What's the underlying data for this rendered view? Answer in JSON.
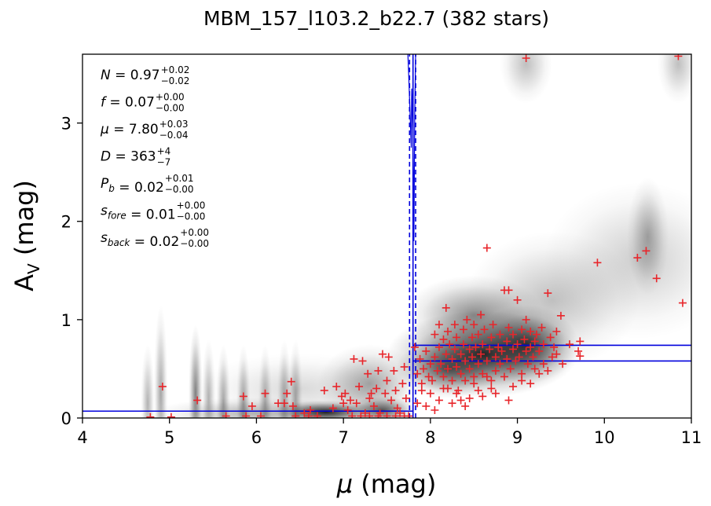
{
  "chart_data": {
    "type": "scatter",
    "title": "MBM_157_l103.2_b22.7 (382 stars)",
    "xlabel": {
      "symbol": "μ",
      "unit": " (mag)"
    },
    "ylabel": {
      "base": "A",
      "sub": "V",
      "unit": " (mag)"
    },
    "xlim": [
      4,
      11
    ],
    "ylim": [
      0,
      3.7
    ],
    "xticks": [
      "4",
      "5",
      "6",
      "7",
      "8",
      "9",
      "10",
      "11"
    ],
    "yticks": [
      "0",
      "1",
      "2",
      "3"
    ],
    "grid": false,
    "legend": "none",
    "colors": {
      "points": "#e8262b",
      "model": "#0000dd",
      "density": "#000000"
    },
    "parameters": [
      {
        "sym": "N",
        "sub": "",
        "val": "0.97",
        "up": "+0.02",
        "dn": "−0.02"
      },
      {
        "sym": "f",
        "sub": "",
        "val": "0.07",
        "up": "+0.00",
        "dn": "−0.00"
      },
      {
        "sym": "μ",
        "sub": "",
        "val": "7.80",
        "up": "+0.03",
        "dn": "−0.04"
      },
      {
        "sym": "D",
        "sub": "",
        "val": "363",
        "up": "+4",
        "dn": "−7"
      },
      {
        "sym": "P",
        "sub": "b",
        "val": "0.02",
        "up": "+0.01",
        "dn": "−0.00"
      },
      {
        "sym": "s",
        "sub": "fore",
        "val": "0.01",
        "up": "+0.00",
        "dn": "−0.00"
      },
      {
        "sym": "s",
        "sub": "back",
        "val": "0.02",
        "up": "+0.00",
        "dn": "−0.00"
      }
    ],
    "model": {
      "distance_modulus": 7.8,
      "mu_err_low": 7.76,
      "mu_err_high": 7.83,
      "foreground_av": 0.07,
      "background_av_low": 0.58,
      "background_av_high": 0.74
    },
    "density": [
      {
        "x": 8.6,
        "y": 0.65,
        "sx": 0.55,
        "sy": 0.22,
        "a": 0.85
      },
      {
        "x": 9.1,
        "y": 0.75,
        "sx": 0.3,
        "sy": 0.2,
        "a": 0.7
      },
      {
        "x": 8.2,
        "y": 0.5,
        "sx": 0.3,
        "sy": 0.15,
        "a": 0.55
      },
      {
        "x": 8.5,
        "y": 1.05,
        "sx": 0.4,
        "sy": 0.2,
        "a": 0.45
      },
      {
        "x": 9.4,
        "y": 1.2,
        "sx": 0.5,
        "sy": 0.35,
        "a": 0.25
      },
      {
        "x": 10.4,
        "y": 1.6,
        "sx": 0.55,
        "sy": 0.4,
        "a": 0.2
      },
      {
        "x": 10.5,
        "y": 1.85,
        "sx": 0.12,
        "sy": 0.3,
        "a": 0.3
      },
      {
        "x": 9.1,
        "y": 3.6,
        "sx": 0.15,
        "sy": 0.2,
        "a": 0.25
      },
      {
        "x": 10.85,
        "y": 3.6,
        "sx": 0.12,
        "sy": 0.2,
        "a": 0.25
      },
      {
        "x": 6.8,
        "y": 0.06,
        "sx": 0.3,
        "sy": 0.06,
        "a": 0.85
      },
      {
        "x": 7.45,
        "y": 0.08,
        "sx": 0.2,
        "sy": 0.07,
        "a": 0.65
      },
      {
        "x": 6.0,
        "y": 0.05,
        "sx": 0.6,
        "sy": 0.08,
        "a": 0.3
      },
      {
        "x": 7.3,
        "y": 0.35,
        "sx": 0.3,
        "sy": 0.2,
        "a": 0.35
      },
      {
        "x": 6.5,
        "y": 0.3,
        "sx": 0.6,
        "sy": 0.18,
        "a": 0.15
      },
      {
        "x": 5.3,
        "y": 0.25,
        "sx": 0.04,
        "sy": 0.35,
        "a": 0.5
      },
      {
        "x": 4.9,
        "y": 0.25,
        "sx": 0.04,
        "sy": 0.45,
        "a": 0.35
      },
      {
        "x": 4.75,
        "y": 0.15,
        "sx": 0.04,
        "sy": 0.3,
        "a": 0.3
      },
      {
        "x": 5.45,
        "y": 0.2,
        "sx": 0.04,
        "sy": 0.3,
        "a": 0.3
      },
      {
        "x": 5.62,
        "y": 0.15,
        "sx": 0.04,
        "sy": 0.3,
        "a": 0.35
      },
      {
        "x": 5.85,
        "y": 0.15,
        "sx": 0.04,
        "sy": 0.3,
        "a": 0.35
      },
      {
        "x": 6.1,
        "y": 0.15,
        "sx": 0.04,
        "sy": 0.3,
        "a": 0.3
      },
      {
        "x": 6.32,
        "y": 0.2,
        "sx": 0.04,
        "sy": 0.3,
        "a": 0.3
      },
      {
        "x": 6.45,
        "y": 0.2,
        "sx": 0.04,
        "sy": 0.3,
        "a": 0.3
      }
    ],
    "points": [
      [
        4.92,
        0.32
      ],
      [
        5.32,
        0.18
      ],
      [
        5.02,
        0.01
      ],
      [
        4.78,
        0.01
      ],
      [
        5.65,
        0.02
      ],
      [
        5.85,
        0.22
      ],
      [
        5.88,
        0.02
      ],
      [
        5.95,
        0.12
      ],
      [
        6.1,
        0.25
      ],
      [
        6.05,
        0.02
      ],
      [
        6.25,
        0.15
      ],
      [
        6.32,
        0.15
      ],
      [
        6.35,
        0.25
      ],
      [
        6.4,
        0.37
      ],
      [
        6.42,
        0.12
      ],
      [
        6.45,
        0.02
      ],
      [
        6.55,
        0.05
      ],
      [
        6.6,
        0.02
      ],
      [
        6.62,
        0.08
      ],
      [
        6.7,
        0.02
      ],
      [
        6.78,
        0.28
      ],
      [
        6.88,
        0.1
      ],
      [
        6.92,
        0.32
      ],
      [
        6.98,
        0.22
      ],
      [
        7.0,
        0.15
      ],
      [
        7.02,
        0.25
      ],
      [
        7.05,
        0.08
      ],
      [
        7.08,
        0.18
      ],
      [
        7.1,
        0.02
      ],
      [
        7.12,
        0.6
      ],
      [
        7.15,
        0.15
      ],
      [
        7.18,
        0.32
      ],
      [
        7.22,
        0.58
      ],
      [
        7.25,
        0.05
      ],
      [
        7.28,
        0.45
      ],
      [
        7.3,
        0.2
      ],
      [
        7.32,
        0.25
      ],
      [
        7.35,
        0.12
      ],
      [
        7.38,
        0.3
      ],
      [
        7.4,
        0.48
      ],
      [
        7.42,
        0.05
      ],
      [
        7.45,
        0.65
      ],
      [
        7.48,
        0.25
      ],
      [
        7.5,
        0.38
      ],
      [
        7.52,
        0.62
      ],
      [
        7.55,
        0.18
      ],
      [
        7.58,
        0.48
      ],
      [
        7.6,
        0.28
      ],
      [
        7.62,
        0.1
      ],
      [
        7.65,
        0.05
      ],
      [
        7.68,
        0.35
      ],
      [
        7.7,
        0.52
      ],
      [
        7.72,
        0.2
      ],
      [
        7.75,
        0.02
      ],
      [
        7.4,
        0.02
      ],
      [
        7.3,
        0.02
      ],
      [
        7.6,
        0.02
      ],
      [
        7.7,
        0.02
      ],
      [
        7.2,
        0.02
      ],
      [
        7.5,
        0.02
      ],
      [
        7.82,
        0.72
      ],
      [
        7.85,
        0.45
      ],
      [
        7.88,
        0.6
      ],
      [
        7.9,
        0.35
      ],
      [
        7.92,
        0.5
      ],
      [
        7.95,
        0.68
      ],
      [
        7.98,
        0.42
      ],
      [
        8.0,
        0.55
      ],
      [
        8.02,
        0.38
      ],
      [
        8.05,
        0.85
      ],
      [
        8.05,
        0.62
      ],
      [
        8.08,
        0.48
      ],
      [
        8.1,
        0.95
      ],
      [
        8.1,
        0.72
      ],
      [
        8.12,
        0.55
      ],
      [
        8.15,
        0.42
      ],
      [
        8.15,
        0.8
      ],
      [
        8.18,
        1.12
      ],
      [
        8.18,
        0.65
      ],
      [
        8.2,
        0.5
      ],
      [
        8.2,
        0.88
      ],
      [
        8.22,
        0.75
      ],
      [
        8.25,
        0.38
      ],
      [
        8.25,
        0.6
      ],
      [
        8.28,
        0.95
      ],
      [
        8.28,
        0.7
      ],
      [
        8.3,
        0.52
      ],
      [
        8.3,
        0.82
      ],
      [
        8.32,
        0.28
      ],
      [
        8.35,
        0.65
      ],
      [
        8.35,
        0.45
      ],
      [
        8.38,
        0.9
      ],
      [
        8.38,
        0.75
      ],
      [
        8.4,
        0.58
      ],
      [
        8.4,
        0.38
      ],
      [
        8.42,
        1.0
      ],
      [
        8.45,
        0.7
      ],
      [
        8.45,
        0.5
      ],
      [
        8.48,
        0.82
      ],
      [
        8.48,
        0.62
      ],
      [
        8.5,
        0.42
      ],
      [
        8.5,
        0.95
      ],
      [
        8.52,
        0.72
      ],
      [
        8.55,
        0.55
      ],
      [
        8.55,
        0.85
      ],
      [
        8.58,
        1.05
      ],
      [
        8.58,
        0.65
      ],
      [
        8.6,
        0.45
      ],
      [
        8.6,
        0.75
      ],
      [
        8.62,
        0.9
      ],
      [
        8.65,
        1.73
      ],
      [
        8.65,
        0.58
      ],
      [
        8.68,
        0.7
      ],
      [
        8.7,
        0.38
      ],
      [
        8.7,
        0.82
      ],
      [
        8.72,
        0.95
      ],
      [
        8.75,
        0.62
      ],
      [
        8.75,
        0.48
      ],
      [
        8.78,
        0.72
      ],
      [
        8.8,
        0.85
      ],
      [
        8.8,
        0.55
      ],
      [
        8.82,
        0.68
      ],
      [
        8.85,
        1.3
      ],
      [
        8.85,
        0.42
      ],
      [
        8.88,
        0.78
      ],
      [
        8.88,
        0.6
      ],
      [
        8.9,
        1.3
      ],
      [
        8.9,
        0.92
      ],
      [
        8.92,
        0.5
      ],
      [
        8.95,
        0.7
      ],
      [
        8.95,
        0.85
      ],
      [
        8.98,
        0.58
      ],
      [
        9.0,
        1.2
      ],
      [
        9.0,
        0.75
      ],
      [
        9.02,
        0.62
      ],
      [
        9.05,
        0.9
      ],
      [
        9.05,
        0.45
      ],
      [
        9.08,
        0.8
      ],
      [
        9.1,
        0.68
      ],
      [
        9.1,
        1.0
      ],
      [
        9.12,
        0.55
      ],
      [
        9.15,
        0.88
      ],
      [
        9.15,
        0.72
      ],
      [
        9.18,
        0.62
      ],
      [
        9.2,
        0.78
      ],
      [
        9.2,
        0.5
      ],
      [
        9.22,
        0.85
      ],
      [
        9.25,
        0.68
      ],
      [
        9.28,
        0.92
      ],
      [
        9.3,
        0.75
      ],
      [
        9.35,
        1.27
      ],
      [
        9.38,
        0.82
      ],
      [
        9.4,
        0.62
      ],
      [
        9.42,
        0.72
      ],
      [
        9.45,
        0.88
      ],
      [
        9.5,
        1.04
      ],
      [
        9.52,
        0.55
      ],
      [
        9.7,
        0.68
      ],
      [
        9.72,
        0.78
      ],
      [
        9.72,
        0.63
      ],
      [
        9.92,
        1.58
      ],
      [
        10.38,
        1.63
      ],
      [
        10.48,
        1.7
      ],
      [
        10.6,
        1.42
      ],
      [
        10.9,
        1.17
      ],
      [
        10.85,
        3.68
      ],
      [
        9.1,
        3.66
      ],
      [
        8.2,
        0.3
      ],
      [
        8.3,
        0.25
      ],
      [
        8.0,
        0.25
      ],
      [
        8.5,
        0.35
      ],
      [
        8.6,
        0.22
      ],
      [
        8.7,
        0.3
      ],
      [
        8.9,
        0.18
      ],
      [
        8.55,
        0.28
      ],
      [
        8.35,
        0.18
      ],
      [
        8.1,
        0.18
      ],
      [
        8.4,
        0.12
      ],
      [
        8.25,
        0.15
      ],
      [
        8.45,
        0.2
      ],
      [
        8.65,
        0.42
      ],
      [
        8.15,
        0.3
      ],
      [
        9.05,
        0.38
      ],
      [
        9.25,
        0.45
      ],
      [
        8.95,
        0.32
      ],
      [
        7.9,
        0.28
      ],
      [
        7.85,
        0.15
      ],
      [
        8.05,
        0.08
      ],
      [
        7.95,
        0.12
      ],
      [
        8.75,
        0.25
      ],
      [
        9.15,
        0.35
      ],
      [
        9.3,
        0.55
      ],
      [
        9.45,
        0.65
      ],
      [
        9.6,
        0.75
      ],
      [
        9.35,
        0.48
      ]
    ]
  }
}
